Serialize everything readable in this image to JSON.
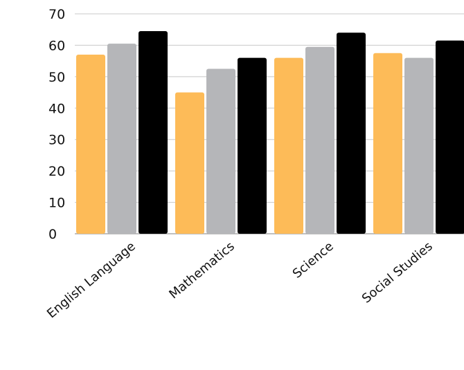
{
  "chart_data": {
    "type": "bar",
    "categories": [
      "English Language",
      "Mathematics",
      "Science",
      "Social Studies"
    ],
    "series": [
      {
        "color": "#FDBB58",
        "values": [
          57,
          45,
          56,
          57.5
        ]
      },
      {
        "color": "#B5B6B9",
        "values": [
          60.5,
          52.5,
          59.5,
          56
        ]
      },
      {
        "color": "#000000",
        "values": [
          64.5,
          56,
          64,
          61.5
        ]
      }
    ],
    "yticks": [
      "0",
      "10",
      "20",
      "30",
      "40",
      "50",
      "60",
      "70"
    ],
    "ylim": [
      0,
      70
    ],
    "grid": true,
    "legend": "none"
  }
}
